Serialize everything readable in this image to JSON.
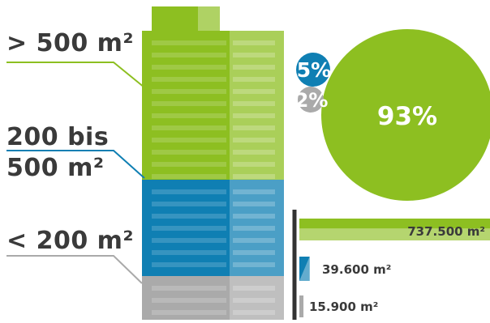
{
  "chart_data": [
    {
      "type": "pie",
      "categories": [
        "> 500 m²",
        "200 bis 500 m²",
        "< 200 m²"
      ],
      "values": [
        93,
        5,
        2
      ],
      "value_labels": [
        "93%",
        "5%",
        "2%"
      ],
      "colors": [
        "#8dbf21",
        "#0f7fb3",
        "#aaaaaa"
      ]
    },
    {
      "type": "bar",
      "orientation": "horizontal",
      "categories": [
        "> 500 m²",
        "200 bis 500 m²",
        "< 200 m²"
      ],
      "values": [
        737500,
        39600,
        15900
      ],
      "value_labels": [
        "737.500 m²",
        "39.600 m²",
        "15.900 m²"
      ],
      "colors": [
        "#8dbf21",
        "#0f7fb3",
        "#aaaaaa"
      ],
      "axis_color": "#333333"
    }
  ],
  "building": {
    "categories": [
      {
        "label_lines": [
          "> 500 m²"
        ],
        "color": "#8dbf21",
        "line_color": "#8dbf21"
      },
      {
        "label_lines": [
          "200 bis",
          "500 m²"
        ],
        "color": "#0f7fb3",
        "line_color": "#0f7fb3"
      },
      {
        "label_lines": [
          "< 200 m²"
        ],
        "color": "#aaaaaa",
        "line_color": "#aaaaaa"
      }
    ]
  }
}
